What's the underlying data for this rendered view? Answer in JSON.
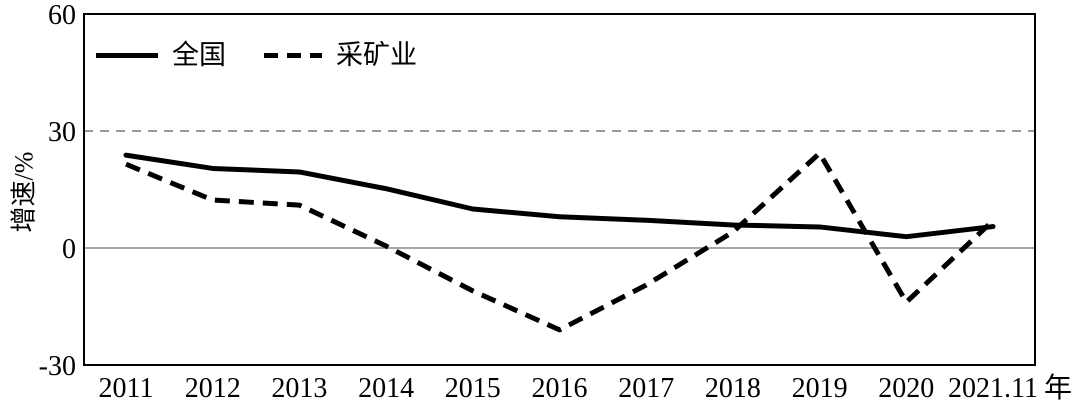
{
  "chart_data": {
    "type": "line",
    "title": "",
    "ylabel": "增速/%",
    "xlabel": "",
    "x_axis_suffix": "年",
    "categories": [
      "2011",
      "2012",
      "2013",
      "2014",
      "2015",
      "2016",
      "2017",
      "2018",
      "2019",
      "2020",
      "2021.11"
    ],
    "series": [
      {
        "name": "全国",
        "style": "solid",
        "color": "#000000",
        "values": [
          23.8,
          20.4,
          19.5,
          15.2,
          10.0,
          8.0,
          7.1,
          5.9,
          5.4,
          2.9,
          5.5
        ]
      },
      {
        "name": "采矿业",
        "style": "dashed",
        "color": "#000000",
        "values": [
          21.5,
          12.3,
          11.0,
          0.5,
          -11.0,
          -21.0,
          -9.5,
          4.1,
          24.3,
          -13.9,
          7.0
        ]
      }
    ],
    "ylim": [
      -30,
      60
    ],
    "yticks": [
      60,
      30,
      0,
      -30
    ],
    "reference_lines": [
      {
        "y": 30,
        "style": "dashed",
        "color": "#8c8c8c"
      },
      {
        "y": 0,
        "style": "solid",
        "color": "#8c8c8c"
      }
    ],
    "grid": "off",
    "legend_position": "top-left-inside",
    "frame_color": "#000000",
    "background": "#ffffff"
  }
}
